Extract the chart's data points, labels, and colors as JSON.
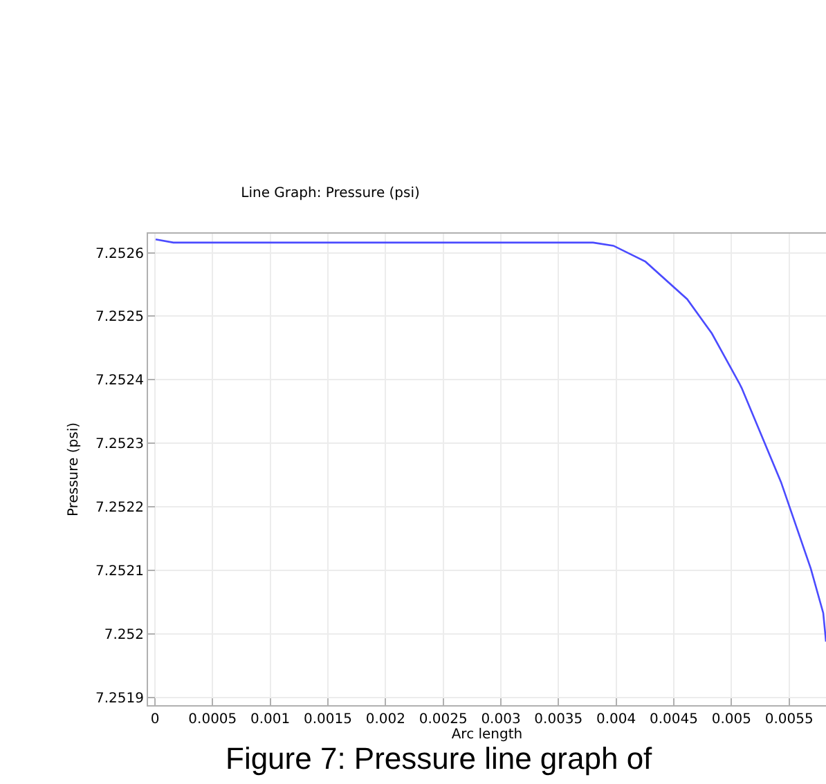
{
  "chart_data": {
    "type": "line",
    "title": "Line Graph: Pressure (psi)",
    "xlabel": "Arc length",
    "ylabel": "Pressure (psi)",
    "annotations": [
      "Figure 7: Pressure line graph of"
    ],
    "x": [
      6e-06,
      0.00016,
      0.0005,
      0.001,
      0.002,
      0.003,
      0.0038,
      0.003976,
      0.004254,
      0.004616,
      0.00483,
      0.005067,
      0.005089,
      0.00543,
      0.005688,
      0.005796,
      0.00582
    ],
    "series": [
      {
        "color": "#4b4bff",
        "values": [
          7.252621,
          7.252616,
          7.252616,
          7.252616,
          7.252616,
          7.252616,
          7.252616,
          7.252611,
          7.252586,
          7.252527,
          7.252473,
          7.252395,
          7.252387,
          7.252239,
          7.252103,
          7.252033,
          7.251988
        ]
      }
    ],
    "xlim": [
      -6e-05,
      0.00582
    ],
    "xticks": [
      0,
      0.0005,
      0.001,
      0.0015,
      0.002,
      0.0025,
      0.003,
      0.0035,
      0.004,
      0.0045,
      0.005,
      0.0055
    ],
    "ylim": [
      7.251888,
      7.25263
    ],
    "yticks": [
      7.2519,
      7.252,
      7.2521,
      7.2522,
      7.2523,
      7.2524,
      7.2525,
      7.2526
    ],
    "grid": true,
    "legend": false,
    "marker": "none",
    "line_style": "solid"
  }
}
